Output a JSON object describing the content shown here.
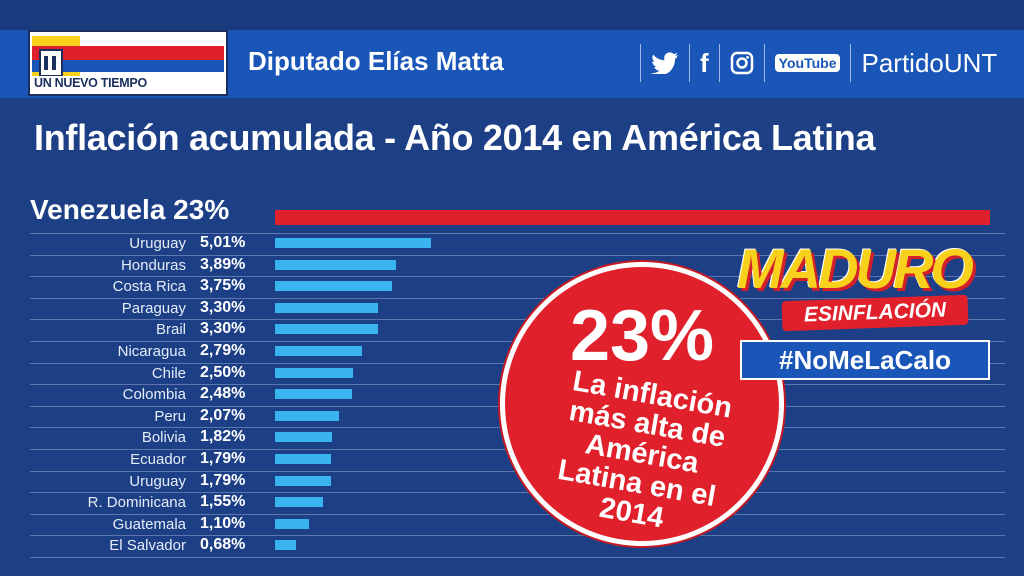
{
  "header": {
    "logo_text": "UN NUEVO TIEMPO",
    "title": "Diputado Elías Matta",
    "social_icons": [
      "twitter-icon",
      "facebook-icon",
      "instagram-icon",
      "youtube-icon"
    ],
    "youtube_label": "YouTube",
    "facebook_glyph": "f",
    "handle": "PartidoUNT"
  },
  "colors": {
    "background": "#1c3f86",
    "header": "#1a56b8",
    "bar": "#3ab4ee",
    "highlight_bar": "#e0202b",
    "circle": "#e0202b"
  },
  "chart_data": {
    "type": "bar",
    "orientation": "horizontal",
    "title": "Inflación acumulada - Año 2014 en América Latina",
    "highlight": {
      "category": "Venezuela",
      "value": 23,
      "value_label": "23%",
      "label": "Venezuela 23%"
    },
    "categories": [
      "Uruguay",
      "Honduras",
      "Costa Rica",
      "Paraguay",
      "Brail",
      "Nicaragua",
      "Chile",
      "Colombia",
      "Peru",
      "Bolivia",
      "Ecuador",
      "Uruguay",
      "R. Dominicana",
      "Guatemala",
      "El Salvador"
    ],
    "values": [
      5.01,
      3.89,
      3.75,
      3.3,
      3.3,
      2.79,
      2.5,
      2.48,
      2.07,
      1.82,
      1.79,
      1.79,
      1.55,
      1.1,
      0.68
    ],
    "value_labels": [
      "5,01%",
      "3,89%",
      "3,75%",
      "3,30%",
      "3,30%",
      "2,79%",
      "2,50%",
      "2,48%",
      "2,07%",
      "1,82%",
      "1,79%",
      "1,79%",
      "1,55%",
      "1,10%",
      "0,68%"
    ],
    "xlim": [
      0,
      23
    ],
    "grid": true
  },
  "callout": {
    "big_value": "23%",
    "lines": [
      "La inflación",
      "más alta de",
      "América",
      "Latina en el",
      "2014"
    ]
  },
  "badge": {
    "maduro": "MADURO",
    "esinflacion": "ESINFLACIÓN",
    "hashtag": "#NoMeLaCalo"
  }
}
